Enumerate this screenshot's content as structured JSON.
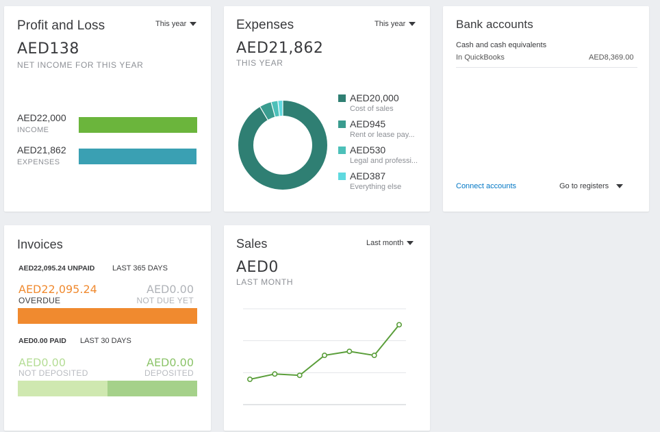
{
  "colors": {
    "income": "#6bb53c",
    "expenses": "#3aa0b3",
    "overdue": "#f08a2f",
    "not_deposited": "#cfe8b0",
    "deposited": "#a5d18a",
    "donut_main": "#2f7f73",
    "donut_rent": "#3a9c8f",
    "donut_legal": "#4cc0b9",
    "donut_else": "#5fd9df",
    "sales_line": "#5a9e3a"
  },
  "profit_loss": {
    "title": "Profit and Loss",
    "period": "This year",
    "amount": "AED138",
    "subtitle": "NET INCOME FOR THIS YEAR",
    "income_amount": "AED22,000",
    "income_label": "INCOME",
    "expenses_amount": "AED21,862",
    "expenses_label": "EXPENSES",
    "income_value": 22000,
    "expenses_value": 21862
  },
  "expenses": {
    "title": "Expenses",
    "period": "This year",
    "amount": "AED21,862",
    "subtitle": "THIS YEAR",
    "legend": [
      {
        "amount": "AED20,000",
        "label": "Cost of sales",
        "value": 20000
      },
      {
        "amount": "AED945",
        "label": "Rent or lease pay...",
        "value": 945
      },
      {
        "amount": "AED530",
        "label": "Legal and professi...",
        "value": 530
      },
      {
        "amount": "AED387",
        "label": "Everything else",
        "value": 387
      }
    ]
  },
  "bank": {
    "title": "Bank accounts",
    "account_name": "Cash and cash equivalents",
    "account_sub": "In QuickBooks",
    "account_amount": "AED8,369.00",
    "connect_link": "Connect accounts",
    "registers": "Go to registers"
  },
  "invoices": {
    "title": "Invoices",
    "unpaid": "AED22,095.24 UNPAID",
    "unpaid_period": "LAST 365 DAYS",
    "overdue_amount": "AED22,095.24",
    "overdue_label": "OVERDUE",
    "not_due_amount": "AED0.00",
    "not_due_label": "NOT DUE YET",
    "paid": "AED0.00 PAID",
    "paid_period": "LAST 30 DAYS",
    "not_deposited_amount": "AED0.00",
    "not_deposited_label": "NOT DEPOSITED",
    "deposited_amount": "AED0.00",
    "deposited_label": "DEPOSITED"
  },
  "sales": {
    "title": "Sales",
    "period": "Last month",
    "amount": "AED0",
    "subtitle": "LAST MONTH"
  },
  "chart_data": {
    "type": "line",
    "x": [
      1,
      2,
      3,
      4,
      5,
      6,
      7
    ],
    "series": [
      {
        "values": [
          0.95,
          1.15,
          1.1,
          1.85,
          2.0,
          1.85,
          3.0
        ]
      }
    ],
    "ylim": [
      0,
      3.6
    ],
    "grid": true
  }
}
